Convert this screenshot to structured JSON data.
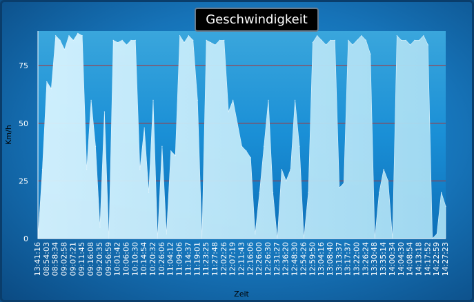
{
  "title": "Geschwindigkeit",
  "chart_data": {
    "type": "area",
    "title": "Geschwindigkeit",
    "xlabel": "Zeit",
    "ylabel": "Km/h",
    "ylim": [
      0,
      90
    ],
    "yticks": [
      0,
      25,
      50,
      75
    ],
    "grid": "horizontal",
    "legend": "none",
    "fill_color": "#cdefff",
    "grid_color": "#b03030",
    "x_tick_labels": [
      "13:41:16",
      "08:54:03",
      "08:58:34",
      "09:02:58",
      "09:07:21",
      "09:11:45",
      "09:16:08",
      "09:20:35",
      "09:56:59",
      "10:01:42",
      "10:06:06",
      "10:10:30",
      "10:14:54",
      "10:20:32",
      "10:26:06",
      "11:04:12",
      "11:09:06",
      "11:14:37",
      "11:19:01",
      "11:23:25",
      "11:27:48",
      "12:02:26",
      "12:07:19",
      "12:11:43",
      "12:16:06",
      "12:26:00",
      "12:26:30",
      "12:31:27",
      "12:36:20",
      "12:48:30",
      "12:54:26",
      "12:59:50",
      "13:04:16",
      "13:08:40",
      "13:13:37",
      "13:17:37",
      "13:22:00",
      "13:26:24",
      "13:30:48",
      "13:35:14",
      "14:00:34",
      "14:04:30",
      "14:08:54",
      "14:13:18",
      "14:17:52",
      "14:22:59",
      "14:27:23"
    ],
    "series": [
      {
        "values": [
          0,
          30,
          68,
          65,
          88,
          86,
          82,
          88,
          86,
          89,
          88,
          30,
          60,
          40,
          5,
          55,
          0,
          86,
          85,
          86,
          84,
          86,
          86,
          30,
          48,
          20,
          60,
          0,
          40,
          2,
          38,
          36,
          88,
          85,
          88,
          86,
          60,
          0,
          86,
          85,
          84,
          86,
          86,
          55,
          60,
          50,
          40,
          38,
          35,
          2,
          20,
          40,
          60,
          20,
          0,
          30,
          25,
          30,
          60,
          40,
          0,
          20,
          85,
          88,
          86,
          84,
          86,
          86,
          22,
          24,
          86,
          84,
          86,
          88,
          86,
          80,
          0,
          20,
          30,
          25,
          0,
          88,
          86,
          86,
          84,
          86,
          86,
          88,
          84,
          0,
          2,
          20,
          14
        ]
      }
    ]
  }
}
